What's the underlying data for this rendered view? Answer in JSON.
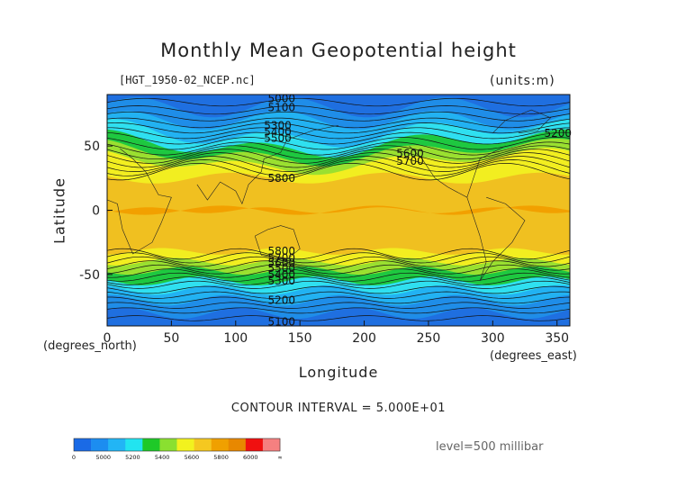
{
  "chart_data": {
    "type": "contour",
    "title": "Monthly Mean Geopotential height",
    "file_label": "[HGT_1950-02_NCEP.nc]",
    "units_label": "(units:m)",
    "xlabel": "Longitude",
    "ylabel": "Latitude",
    "x_unit_label": "(degrees_east)",
    "y_unit_label": "(degrees_north)",
    "xlim": [
      0,
      360
    ],
    "ylim": [
      -90,
      90
    ],
    "x_ticks": [
      0,
      50,
      100,
      150,
      200,
      250,
      300,
      350
    ],
    "y_ticks": [
      50,
      0,
      -50
    ],
    "contour_interval_text": "CONTOUR INTERVAL = 5.000E+01",
    "level_text": "level=500 millibar",
    "contour_labels": [
      "5000",
      "5100",
      "5200",
      "5300",
      "5400",
      "5500",
      "5600",
      "5700",
      "5800"
    ],
    "colorbar": {
      "ticks": [
        "0",
        "5000",
        "5200",
        "5400",
        "5600",
        "5800",
        "6000",
        "∞"
      ],
      "colors": [
        "#1a6ae6",
        "#1c8df0",
        "#22b5f5",
        "#22e4f0",
        "#1ec928",
        "#8ae030",
        "#f2f21e",
        "#f5c820",
        "#f0a000",
        "#e88800",
        "#f01010",
        "#f58080"
      ]
    },
    "bands": [
      {
        "value": 5000,
        "color": "#1f6fe0"
      },
      {
        "value": 5100,
        "color": "#1f8de8"
      },
      {
        "value": 5200,
        "color": "#22b2f2"
      },
      {
        "value": 5300,
        "color": "#2fe0f0"
      },
      {
        "value": 5450,
        "color": "#1ec840"
      },
      {
        "value": 5550,
        "color": "#9ae030"
      },
      {
        "value": 5650,
        "color": "#f2ee20"
      },
      {
        "value": 5750,
        "color": "#f0c020"
      },
      {
        "value": 5850,
        "color": "#f2a000"
      }
    ]
  }
}
